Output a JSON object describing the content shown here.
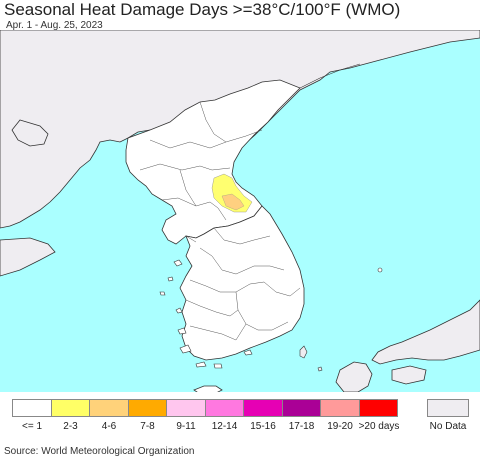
{
  "header": {
    "title": "Seasonal Heat Damage Days >=38°C/100°F (WMO)",
    "subtitle": "Apr. 1 - Aug. 25, 2023"
  },
  "map": {
    "colors": {
      "sea": "#aaffff",
      "land": "#ffffff",
      "outside_land": "#efedf1",
      "border": "#555555",
      "coast": "#333333",
      "hot_2_3": "#ffff70",
      "hot_4_6": "#ffd080"
    }
  },
  "legend": {
    "items": [
      {
        "label": "<= 1",
        "color": "#ffffff"
      },
      {
        "label": "2-3",
        "color": "#ffff66"
      },
      {
        "label": "4-6",
        "color": "#ffd27a"
      },
      {
        "label": "7-8",
        "color": "#ffaa00"
      },
      {
        "label": "9-11",
        "color": "#ffc6ee"
      },
      {
        "label": "12-14",
        "color": "#ff78e0"
      },
      {
        "label": "15-16",
        "color": "#e600b4"
      },
      {
        "label": "17-18",
        "color": "#aa0096"
      },
      {
        "label": "19-20",
        "color": "#ff9a9a"
      },
      {
        "label": ">20 days",
        "color": "#ff0000"
      }
    ],
    "no_data": {
      "label": "No Data",
      "color": "#efedf1"
    }
  },
  "footer": {
    "source": "Source: World Meteorological Organization"
  }
}
